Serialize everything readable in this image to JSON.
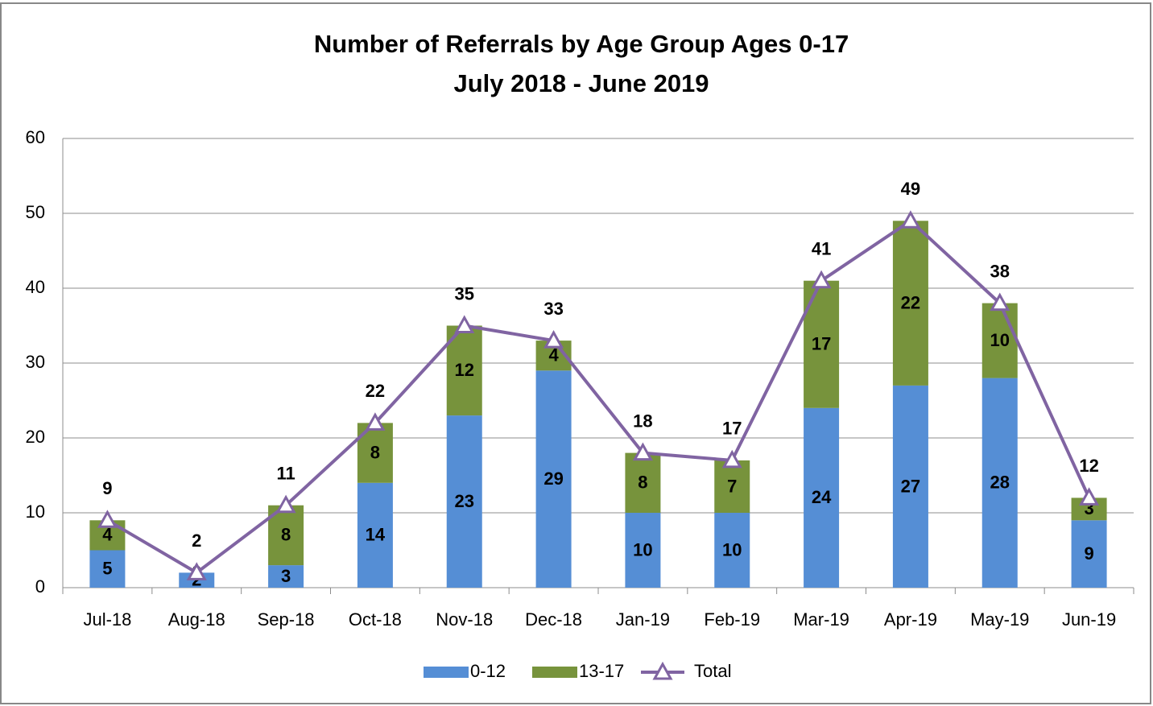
{
  "chart_data": {
    "type": "bar",
    "stacked": true,
    "title": "Number of Referrals by Age Group Ages 0-17",
    "subtitle": "July 2018 - June 2019",
    "categories": [
      "Jul-18",
      "Aug-18",
      "Sep-18",
      "Oct-18",
      "Nov-18",
      "Dec-18",
      "Jan-19",
      "Feb-19",
      "Mar-19",
      "Apr-19",
      "May-19",
      "Jun-19"
    ],
    "series": [
      {
        "name": "0-12",
        "type": "bar",
        "color": "#558ed5",
        "values": [
          5,
          2,
          3,
          14,
          23,
          29,
          10,
          10,
          24,
          27,
          28,
          9
        ]
      },
      {
        "name": "13-17",
        "type": "bar",
        "color": "#77933c",
        "values": [
          4,
          0,
          8,
          8,
          12,
          4,
          8,
          7,
          17,
          22,
          10,
          3
        ]
      },
      {
        "name": "Total",
        "type": "line",
        "color": "#8064a2",
        "values": [
          9,
          2,
          11,
          22,
          35,
          33,
          18,
          17,
          41,
          49,
          38,
          12
        ]
      }
    ],
    "ylim": [
      0,
      60
    ],
    "yticks": [
      0,
      10,
      20,
      30,
      40,
      50,
      60
    ],
    "grid": true,
    "legend": "bottom"
  }
}
